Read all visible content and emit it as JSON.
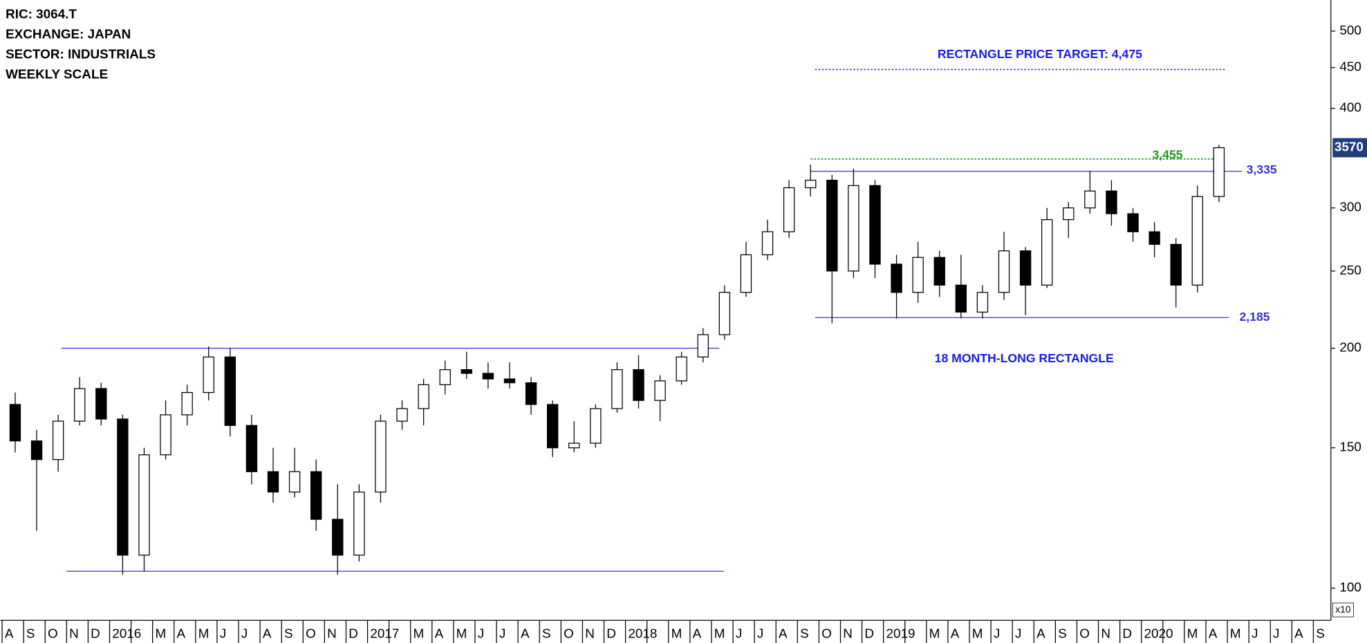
{
  "header": {
    "lines": [
      "RIC: 3064.T",
      "EXCHANGE: JAPAN",
      "SECTOR: INDUSTRIALS",
      "WEEKLY SCALE"
    ]
  },
  "chart_data": {
    "type": "candlestick",
    "log_scale": true,
    "axis_multiplier": "x10",
    "categories": [
      "A",
      "S",
      "O",
      "N",
      "D",
      "2016",
      null,
      "M",
      "A",
      "M",
      "J",
      "J",
      "A",
      "S",
      "O",
      "N",
      "D",
      "2017",
      null,
      "M",
      "A",
      "M",
      "J",
      "J",
      "A",
      "S",
      "O",
      "N",
      "D",
      "2018",
      null,
      "M",
      "A",
      "M",
      "J",
      "J",
      "A",
      "S",
      "O",
      "N",
      "D",
      "2019",
      null,
      "M",
      "A",
      "M",
      "J",
      "J",
      "A",
      "S",
      "O",
      "N",
      "D",
      "2020",
      null,
      "M",
      "A",
      "M",
      "J",
      "J",
      "A",
      "S"
    ],
    "open": [
      170,
      153,
      145,
      162,
      178,
      163,
      110,
      147,
      165,
      176,
      195,
      160,
      140,
      132,
      140,
      122,
      110,
      132,
      162,
      168,
      180,
      188,
      186,
      183,
      181,
      170,
      150,
      152,
      168,
      188,
      172,
      182,
      195,
      208,
      235,
      262,
      280,
      318,
      325,
      250,
      320,
      255,
      235,
      260,
      240,
      222,
      235,
      265,
      240,
      290,
      300,
      315,
      295,
      280,
      270,
      240,
      310,
      null,
      null,
      null,
      null,
      null
    ],
    "high": [
      176,
      158,
      165,
      184,
      181,
      165,
      150,
      172,
      180,
      201,
      200,
      165,
      150,
      150,
      145,
      135,
      135,
      165,
      172,
      183,
      193,
      198,
      192,
      192,
      184,
      172,
      162,
      170,
      192,
      196,
      185,
      198,
      212,
      240,
      272,
      290,
      325,
      340,
      330,
      336,
      325,
      262,
      272,
      265,
      262,
      240,
      280,
      268,
      300,
      305,
      334,
      325,
      300,
      288,
      275,
      320,
      360,
      null,
      null,
      null,
      null,
      null
    ],
    "low": [
      148,
      118,
      140,
      160,
      160,
      104,
      105,
      145,
      160,
      172,
      155,
      135,
      128,
      130,
      118,
      104,
      108,
      128,
      158,
      160,
      175,
      183,
      178,
      178,
      165,
      146,
      148,
      150,
      166,
      168,
      162,
      180,
      192,
      205,
      232,
      258,
      275,
      310,
      215,
      245,
      245,
      218,
      228,
      232,
      218,
      218,
      230,
      220,
      238,
      275,
      295,
      285,
      272,
      260,
      225,
      235,
      305,
      null,
      null,
      null,
      null,
      null
    ],
    "close": [
      153,
      145,
      162,
      178,
      163,
      110,
      147,
      165,
      176,
      195,
      160,
      140,
      132,
      140,
      122,
      110,
      132,
      162,
      168,
      180,
      188,
      186,
      183,
      181,
      170,
      150,
      152,
      168,
      188,
      172,
      182,
      195,
      208,
      235,
      262,
      280,
      318,
      325,
      250,
      320,
      255,
      235,
      260,
      240,
      222,
      235,
      265,
      240,
      290,
      300,
      315,
      295,
      280,
      270,
      240,
      310,
      357,
      null,
      null,
      null,
      null,
      null
    ],
    "up_color": "#ffffff",
    "down_color": "#000000",
    "ylim": [
      96.3,
      547
    ],
    "yticks": [
      100,
      150,
      200,
      250,
      300,
      400,
      450,
      500
    ],
    "last_price": {
      "value": 357,
      "label": "3570",
      "color": "#1f3d7a"
    },
    "levels": [
      {
        "value": 200,
        "style": "solid",
        "color": "#3535d0"
      },
      {
        "value": 105,
        "style": "solid",
        "color": "#3535d0"
      },
      {
        "value": 333.5,
        "label": "3,335",
        "style": "solid",
        "color": "#3535d0"
      },
      {
        "value": 218.5,
        "label": "2,185",
        "style": "solid",
        "color": "#3535d0"
      },
      {
        "value": 447.5,
        "style": "dotted",
        "color": "#3535d0"
      },
      {
        "value": 345.5,
        "label": "3,455",
        "style": "dotted",
        "color": "#1a9a1a"
      }
    ],
    "annotations": [
      "RECTANGLE PRICE TARGET: 4,475",
      "18 MONTH-LONG RECTANGLE"
    ]
  }
}
